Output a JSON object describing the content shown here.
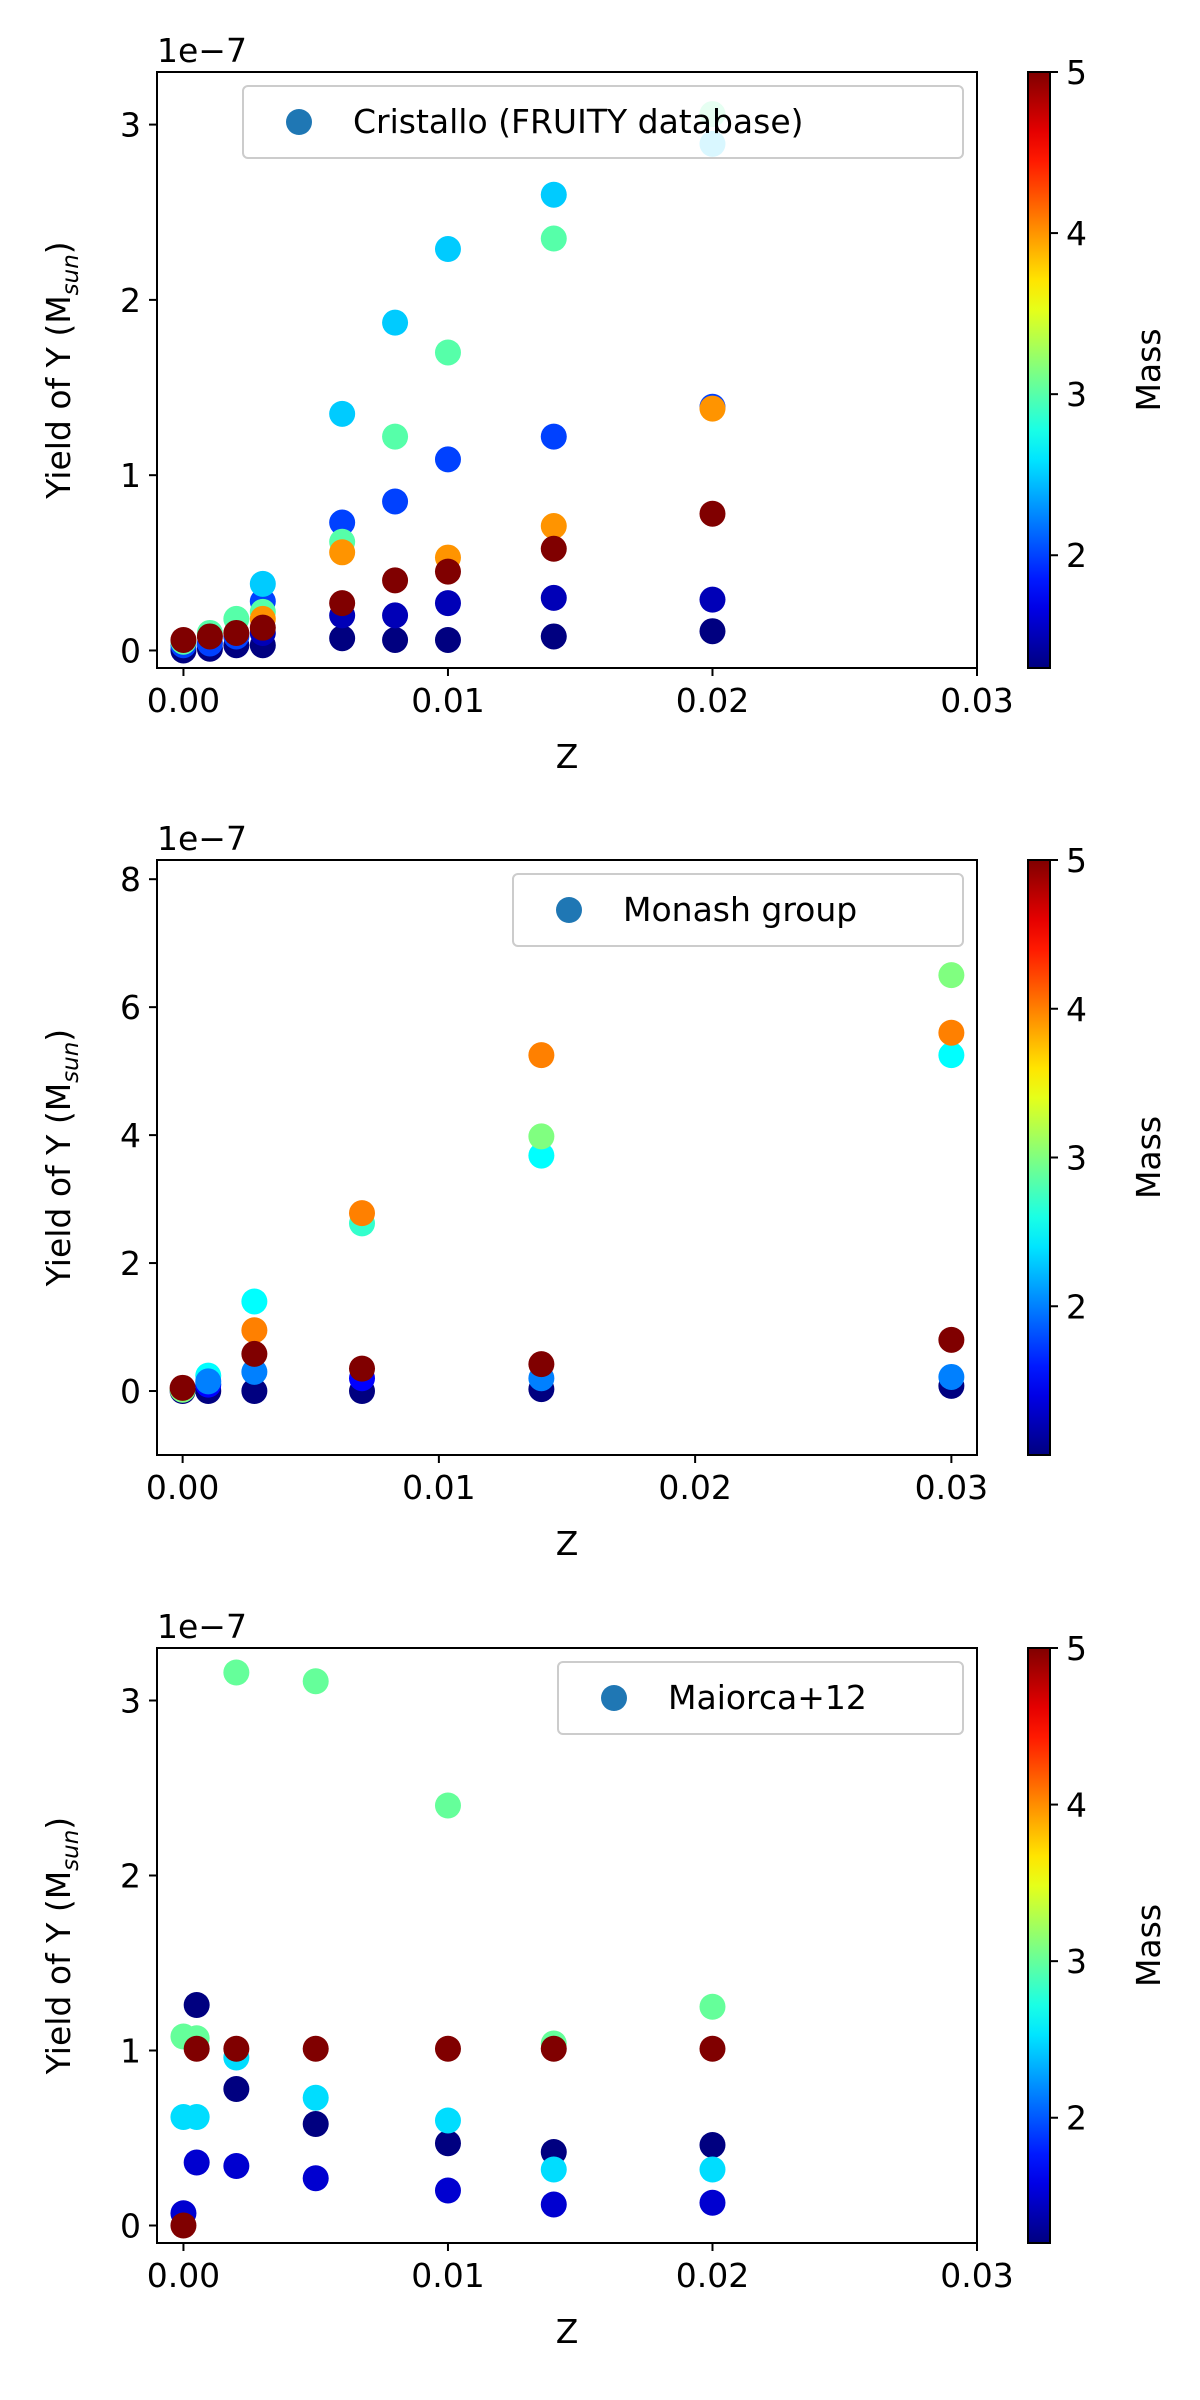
{
  "chart_data": [
    {
      "type": "scatter",
      "title": "",
      "xlabel": "Z",
      "ylabel_main": "Yield of Y (M",
      "ylabel_sub": "sun",
      "ylabel_close": ")",
      "offset_label": "1e−7",
      "xlim": [
        -0.001,
        0.03
      ],
      "ylim": [
        -0.1,
        3.3
      ],
      "xticks": [
        0.0,
        0.01,
        0.02,
        0.03
      ],
      "xtick_labels": [
        "0.00",
        "0.01",
        "0.02",
        "0.03"
      ],
      "yticks": [
        0,
        1,
        2,
        3
      ],
      "ytick_labels": [
        "0",
        "1",
        "2",
        "3"
      ],
      "grid": false,
      "legend": {
        "label": "Cristallo (FRUITY database)",
        "placement": "top-right"
      },
      "colorbar": {
        "label": "Mass",
        "vmin": 1.3,
        "vmax": 5,
        "ticks": [
          2,
          3,
          4,
          5
        ],
        "tick_labels": [
          "2",
          "3",
          "4",
          "5"
        ],
        "colormap": "jet"
      },
      "points": [
        {
          "x": 0.0,
          "y": 0.0,
          "m": 1.3
        },
        {
          "x": 0.0,
          "y": 0.03,
          "m": 2.0
        },
        {
          "x": 0.0,
          "y": 0.05,
          "m": 3.0
        },
        {
          "x": 0.0,
          "y": 0.06,
          "m": 5.0
        },
        {
          "x": 0.001,
          "y": 0.01,
          "m": 1.3
        },
        {
          "x": 0.001,
          "y": 0.04,
          "m": 2.0
        },
        {
          "x": 0.001,
          "y": 0.1,
          "m": 3.0
        },
        {
          "x": 0.001,
          "y": 0.08,
          "m": 5.0
        },
        {
          "x": 0.002,
          "y": 0.03,
          "m": 1.3
        },
        {
          "x": 0.002,
          "y": 0.08,
          "m": 2.0
        },
        {
          "x": 0.002,
          "y": 0.18,
          "m": 3.0
        },
        {
          "x": 0.002,
          "y": 0.1,
          "m": 5.0
        },
        {
          "x": 0.003,
          "y": 0.03,
          "m": 1.3
        },
        {
          "x": 0.003,
          "y": 0.1,
          "m": 1.5
        },
        {
          "x": 0.003,
          "y": 0.28,
          "m": 2.0
        },
        {
          "x": 0.003,
          "y": 0.38,
          "m": 2.5
        },
        {
          "x": 0.003,
          "y": 0.22,
          "m": 3.0
        },
        {
          "x": 0.003,
          "y": 0.18,
          "m": 4.0
        },
        {
          "x": 0.003,
          "y": 0.13,
          "m": 5.0
        },
        {
          "x": 0.006,
          "y": 0.07,
          "m": 1.3
        },
        {
          "x": 0.006,
          "y": 0.2,
          "m": 1.5
        },
        {
          "x": 0.006,
          "y": 0.73,
          "m": 2.0
        },
        {
          "x": 0.006,
          "y": 1.35,
          "m": 2.5
        },
        {
          "x": 0.006,
          "y": 0.62,
          "m": 3.0
        },
        {
          "x": 0.006,
          "y": 0.56,
          "m": 4.0
        },
        {
          "x": 0.006,
          "y": 0.27,
          "m": 5.0
        },
        {
          "x": 0.008,
          "y": 0.06,
          "m": 1.3
        },
        {
          "x": 0.008,
          "y": 0.2,
          "m": 1.5
        },
        {
          "x": 0.008,
          "y": 0.85,
          "m": 2.0
        },
        {
          "x": 0.008,
          "y": 1.87,
          "m": 2.5
        },
        {
          "x": 0.008,
          "y": 1.22,
          "m": 3.0
        },
        {
          "x": 0.008,
          "y": 0.4,
          "m": 5.0
        },
        {
          "x": 0.01,
          "y": 0.06,
          "m": 1.3
        },
        {
          "x": 0.01,
          "y": 0.27,
          "m": 1.5
        },
        {
          "x": 0.01,
          "y": 1.09,
          "m": 2.0
        },
        {
          "x": 0.01,
          "y": 2.29,
          "m": 2.5
        },
        {
          "x": 0.01,
          "y": 1.7,
          "m": 3.0
        },
        {
          "x": 0.01,
          "y": 0.53,
          "m": 4.0
        },
        {
          "x": 0.01,
          "y": 0.45,
          "m": 5.0
        },
        {
          "x": 0.014,
          "y": 0.08,
          "m": 1.3
        },
        {
          "x": 0.014,
          "y": 0.3,
          "m": 1.5
        },
        {
          "x": 0.014,
          "y": 1.22,
          "m": 2.0
        },
        {
          "x": 0.014,
          "y": 2.6,
          "m": 2.5
        },
        {
          "x": 0.014,
          "y": 2.35,
          "m": 3.0
        },
        {
          "x": 0.014,
          "y": 0.71,
          "m": 4.0
        },
        {
          "x": 0.014,
          "y": 0.58,
          "m": 5.0
        },
        {
          "x": 0.02,
          "y": 0.11,
          "m": 1.3
        },
        {
          "x": 0.02,
          "y": 0.29,
          "m": 1.5
        },
        {
          "x": 0.02,
          "y": 1.39,
          "m": 2.0
        },
        {
          "x": 0.02,
          "y": 2.89,
          "m": 2.5
        },
        {
          "x": 0.02,
          "y": 3.06,
          "m": 3.0
        },
        {
          "x": 0.02,
          "y": 1.38,
          "m": 4.0
        },
        {
          "x": 0.02,
          "y": 0.78,
          "m": 5.0
        }
      ]
    },
    {
      "type": "scatter",
      "title": "",
      "xlabel": "Z",
      "ylabel_main": "Yield of Y (M",
      "ylabel_sub": "sun",
      "ylabel_close": ")",
      "offset_label": "1e−7",
      "xlim": [
        -0.001,
        0.031
      ],
      "ylim": [
        -1.0,
        8.3
      ],
      "xticks": [
        0.0,
        0.01,
        0.02,
        0.03
      ],
      "xtick_labels": [
        "0.00",
        "0.01",
        "0.02",
        "0.03"
      ],
      "yticks": [
        0,
        2,
        4,
        6,
        8
      ],
      "ytick_labels": [
        "0",
        "2",
        "4",
        "6",
        "8"
      ],
      "grid": false,
      "legend": {
        "label": "Monash group",
        "placement": "top-right"
      },
      "colorbar": {
        "label": "Mass",
        "vmin": 1.0,
        "vmax": 5,
        "ticks": [
          2,
          3,
          4,
          5
        ],
        "tick_labels": [
          "2",
          "3",
          "4",
          "5"
        ],
        "colormap": "jet"
      },
      "points": [
        {
          "x": 0.0,
          "y": 0.0,
          "m": 1.0
        },
        {
          "x": 0.0,
          "y": 0.02,
          "m": 3.0
        },
        {
          "x": 0.0,
          "y": 0.05,
          "m": 5.0
        },
        {
          "x": 0.001,
          "y": 0.0,
          "m": 1.0
        },
        {
          "x": 0.001,
          "y": 0.1,
          "m": 1.5
        },
        {
          "x": 0.001,
          "y": 0.24,
          "m": 2.5
        },
        {
          "x": 0.001,
          "y": 0.15,
          "m": 2.0
        },
        {
          "x": 0.0028,
          "y": 0.0,
          "m": 1.0
        },
        {
          "x": 0.0028,
          "y": 0.3,
          "m": 2.0
        },
        {
          "x": 0.0028,
          "y": 1.4,
          "m": 2.5
        },
        {
          "x": 0.0028,
          "y": 0.95,
          "m": 4.0
        },
        {
          "x": 0.0028,
          "y": 0.58,
          "m": 5.0
        },
        {
          "x": 0.007,
          "y": 0.0,
          "m": 1.0
        },
        {
          "x": 0.007,
          "y": 0.2,
          "m": 1.5
        },
        {
          "x": 0.007,
          "y": 2.62,
          "m": 2.7
        },
        {
          "x": 0.007,
          "y": 2.78,
          "m": 4.0
        },
        {
          "x": 0.007,
          "y": 0.35,
          "m": 5.0
        },
        {
          "x": 0.014,
          "y": 0.03,
          "m": 1.0
        },
        {
          "x": 0.014,
          "y": 0.2,
          "m": 2.0
        },
        {
          "x": 0.014,
          "y": 3.68,
          "m": 2.5
        },
        {
          "x": 0.014,
          "y": 3.98,
          "m": 3.0
        },
        {
          "x": 0.014,
          "y": 5.25,
          "m": 4.0
        },
        {
          "x": 0.014,
          "y": 0.42,
          "m": 5.0
        },
        {
          "x": 0.03,
          "y": 0.08,
          "m": 1.0
        },
        {
          "x": 0.03,
          "y": 0.22,
          "m": 2.0
        },
        {
          "x": 0.03,
          "y": 5.25,
          "m": 2.5
        },
        {
          "x": 0.03,
          "y": 6.5,
          "m": 3.0
        },
        {
          "x": 0.03,
          "y": 5.6,
          "m": 4.0
        },
        {
          "x": 0.03,
          "y": 0.8,
          "m": 5.0
        }
      ]
    },
    {
      "type": "scatter",
      "title": "",
      "xlabel": "Z",
      "ylabel_main": "Yield of Y (M",
      "ylabel_sub": "sun",
      "ylabel_close": ")",
      "offset_label": "1e−7",
      "xlim": [
        -0.001,
        0.03
      ],
      "ylim": [
        -0.1,
        3.3
      ],
      "xticks": [
        0.0,
        0.01,
        0.02,
        0.03
      ],
      "xtick_labels": [
        "0.00",
        "0.01",
        "0.02",
        "0.03"
      ],
      "yticks": [
        0,
        1,
        2,
        3
      ],
      "ytick_labels": [
        "0",
        "1",
        "2",
        "3"
      ],
      "grid": false,
      "legend": {
        "label": "Maiorca+12",
        "placement": "top-right"
      },
      "colorbar": {
        "label": "Mass",
        "vmin": 1.2,
        "vmax": 5,
        "ticks": [
          2,
          3,
          4,
          5
        ],
        "tick_labels": [
          "2",
          "3",
          "4",
          "5"
        ],
        "colormap": "jet"
      },
      "points": [
        {
          "x": 0.0,
          "y": 0.07,
          "m": 1.5
        },
        {
          "x": 0.0,
          "y": 0.62,
          "m": 2.5
        },
        {
          "x": 0.0,
          "y": 1.08,
          "m": 3.0
        },
        {
          "x": 0.0,
          "y": 0.0,
          "m": 5.0
        },
        {
          "x": 0.0005,
          "y": 1.26,
          "m": 1.2
        },
        {
          "x": 0.0005,
          "y": 0.36,
          "m": 1.5
        },
        {
          "x": 0.0005,
          "y": 0.62,
          "m": 2.5
        },
        {
          "x": 0.0005,
          "y": 1.07,
          "m": 3.0
        },
        {
          "x": 0.0005,
          "y": 1.01,
          "m": 5.0
        },
        {
          "x": 0.002,
          "y": 0.78,
          "m": 1.2
        },
        {
          "x": 0.002,
          "y": 0.34,
          "m": 1.5
        },
        {
          "x": 0.002,
          "y": 0.96,
          "m": 2.5
        },
        {
          "x": 0.002,
          "y": 3.16,
          "m": 3.0
        },
        {
          "x": 0.002,
          "y": 1.01,
          "m": 5.0
        },
        {
          "x": 0.005,
          "y": 0.58,
          "m": 1.2
        },
        {
          "x": 0.005,
          "y": 0.27,
          "m": 1.5
        },
        {
          "x": 0.005,
          "y": 0.73,
          "m": 2.5
        },
        {
          "x": 0.005,
          "y": 3.11,
          "m": 3.0
        },
        {
          "x": 0.005,
          "y": 1.01,
          "m": 5.0
        },
        {
          "x": 0.01,
          "y": 0.47,
          "m": 1.2
        },
        {
          "x": 0.01,
          "y": 0.2,
          "m": 1.5
        },
        {
          "x": 0.01,
          "y": 0.6,
          "m": 2.5
        },
        {
          "x": 0.01,
          "y": 2.4,
          "m": 3.0
        },
        {
          "x": 0.01,
          "y": 1.01,
          "m": 5.0
        },
        {
          "x": 0.014,
          "y": 0.42,
          "m": 1.2
        },
        {
          "x": 0.014,
          "y": 0.12,
          "m": 1.5
        },
        {
          "x": 0.014,
          "y": 0.32,
          "m": 2.5
        },
        {
          "x": 0.014,
          "y": 1.04,
          "m": 3.0
        },
        {
          "x": 0.014,
          "y": 1.01,
          "m": 5.0
        },
        {
          "x": 0.02,
          "y": 0.46,
          "m": 1.2
        },
        {
          "x": 0.02,
          "y": 0.13,
          "m": 1.5
        },
        {
          "x": 0.02,
          "y": 0.32,
          "m": 2.5
        },
        {
          "x": 0.02,
          "y": 1.25,
          "m": 3.0
        },
        {
          "x": 0.02,
          "y": 1.01,
          "m": 5.0
        }
      ]
    }
  ]
}
